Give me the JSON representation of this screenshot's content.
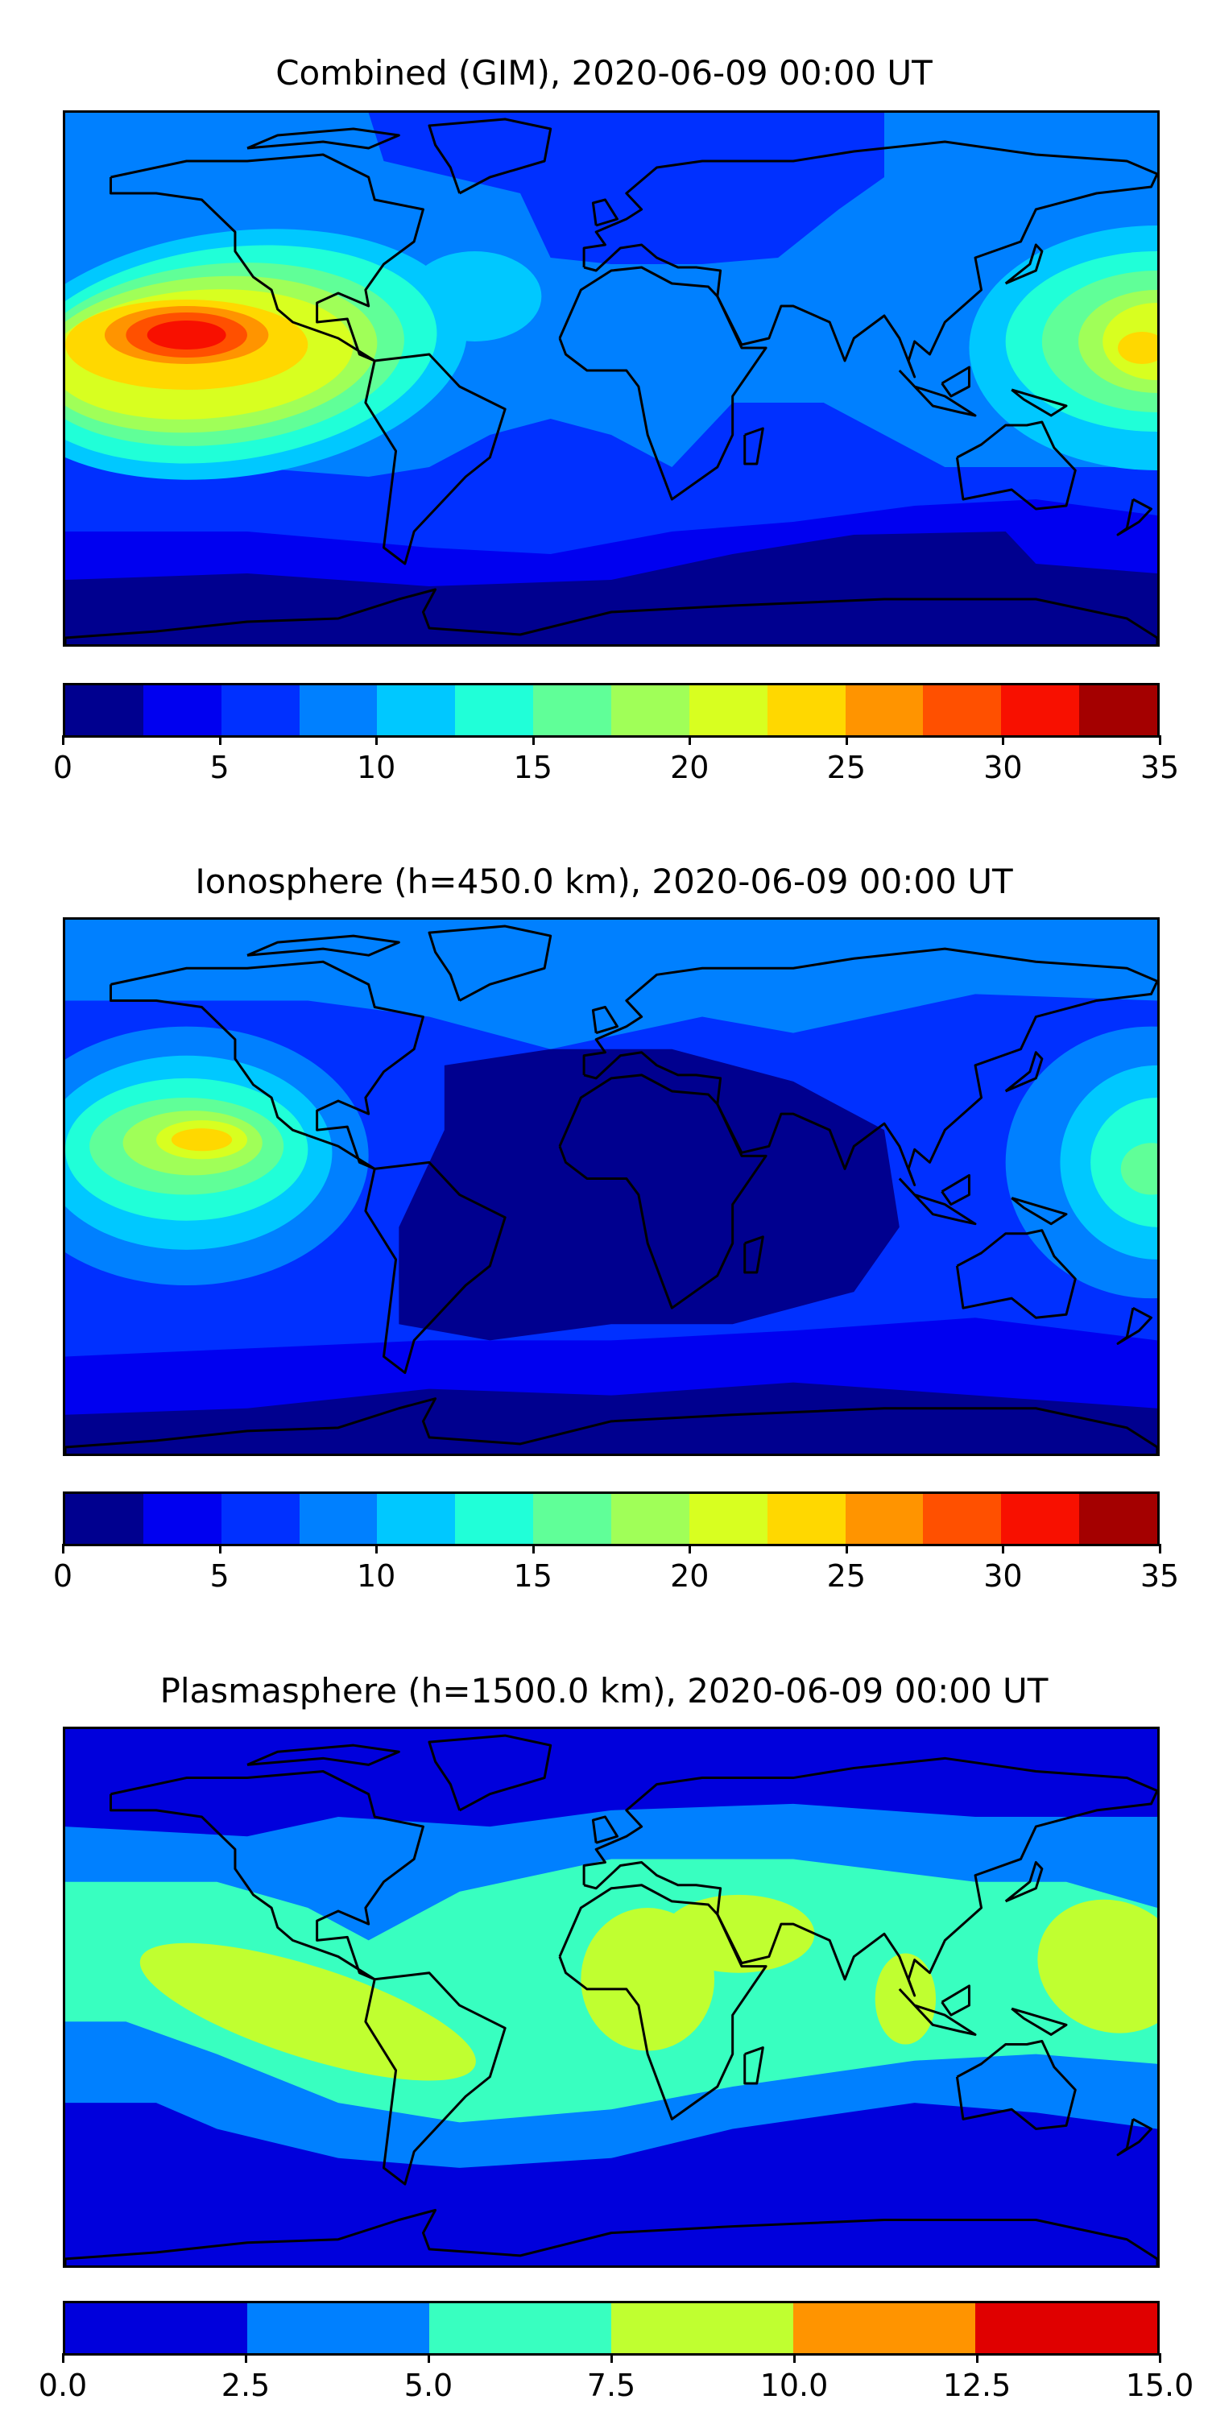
{
  "chart_data": [
    {
      "type": "heatmap",
      "title": "Combined (GIM), 2020-06-09 00:00 UT",
      "colorbar": {
        "ticks": [
          "0",
          "5",
          "10",
          "15",
          "20",
          "25",
          "30",
          "35"
        ],
        "range": [
          0,
          35
        ],
        "level_step": 2.5,
        "colors": [
          "#00008f",
          "#0000f0",
          "#0030ff",
          "#0080ff",
          "#00c8ff",
          "#20ffd8",
          "#60ff98",
          "#a0ff58",
          "#d8ff20",
          "#ffd800",
          "#ff9400",
          "#ff5000",
          "#f81000",
          "#a40000"
        ]
      },
      "peak_region": "eastern Pacific, ~30-32.5",
      "notes_max": 32.5
    },
    {
      "type": "heatmap",
      "title": "Ionosphere  (h=450.0 km), 2020-06-09 00:00 UT",
      "colorbar": {
        "ticks": [
          "0",
          "5",
          "10",
          "15",
          "20",
          "25",
          "30",
          "35"
        ],
        "range": [
          0,
          35
        ],
        "level_step": 2.5,
        "colors": [
          "#00008f",
          "#0000f0",
          "#0030ff",
          "#0080ff",
          "#00c8ff",
          "#20ffd8",
          "#60ff98",
          "#a0ff58",
          "#d8ff20",
          "#ffd800",
          "#ff9400",
          "#ff5000",
          "#f81000",
          "#a40000"
        ]
      },
      "notes_max": 25
    },
    {
      "type": "heatmap",
      "title": "Plasmasphere (h=1500.0 km), 2020-06-09 00:00 UT",
      "colorbar": {
        "ticks": [
          "0.0",
          "2.5",
          "5.0",
          "7.5",
          "10.0",
          "12.5",
          "15.0"
        ],
        "range": [
          0,
          15
        ],
        "level_step": 2.5,
        "colors": [
          "#0000dc",
          "#0080ff",
          "#38ffc0",
          "#c0ff30",
          "#ff9400",
          "#e00000"
        ]
      },
      "notes_max": 10
    }
  ]
}
